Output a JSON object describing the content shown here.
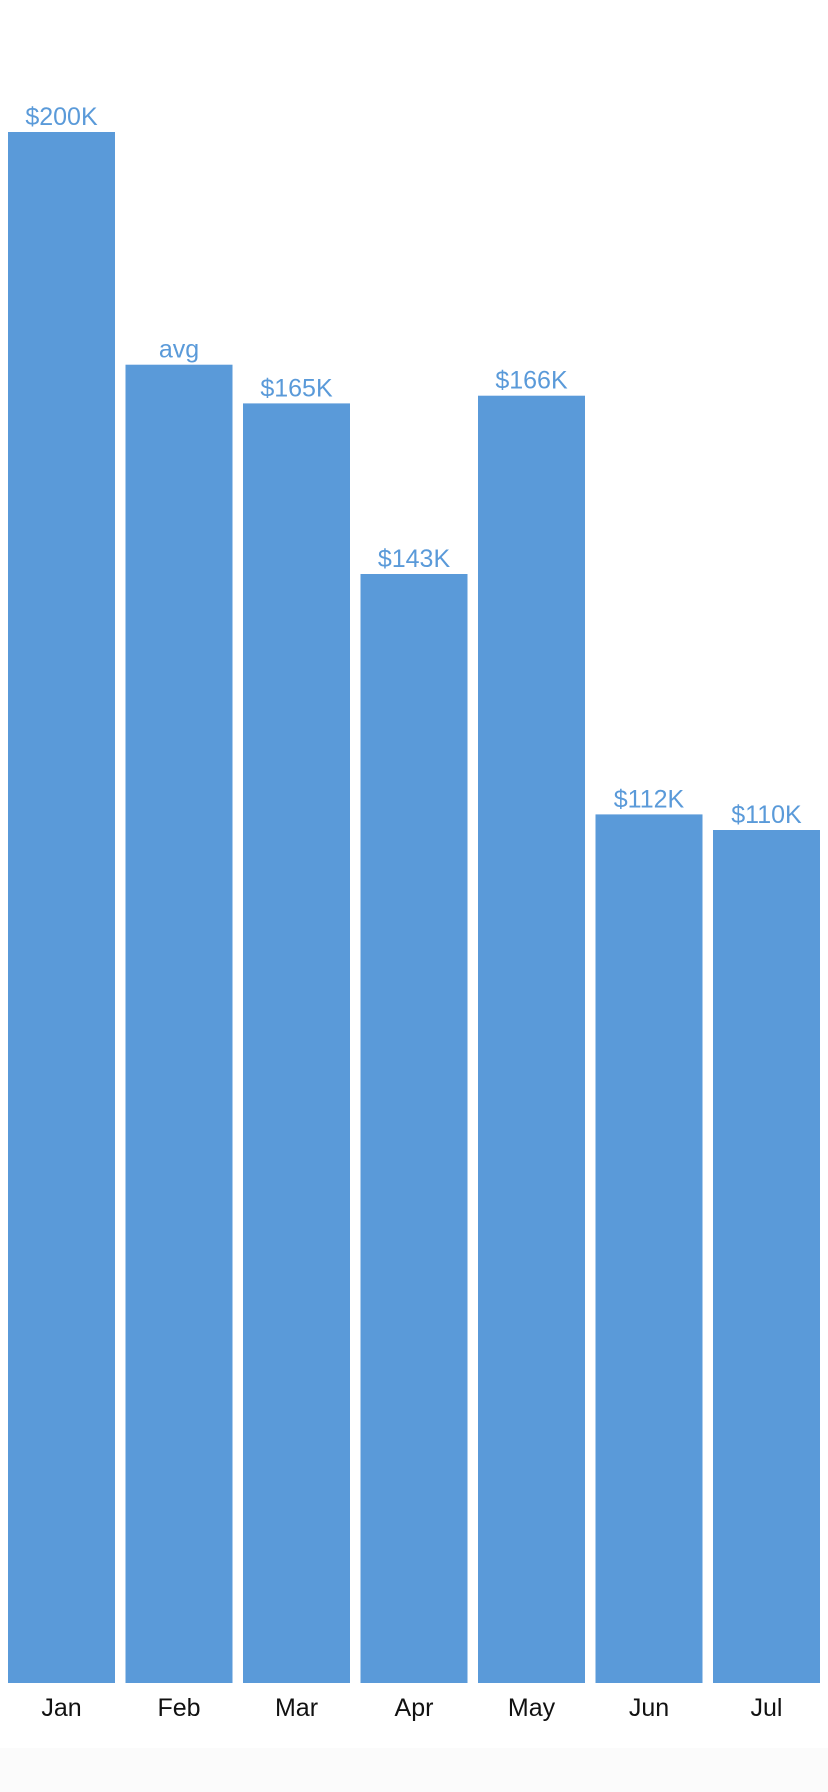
{
  "chart_data": {
    "type": "bar",
    "title": "",
    "xlabel": "",
    "ylabel": "",
    "categories": [
      "Jan",
      "Feb",
      "Mar",
      "Apr",
      "May",
      "Jun",
      "Jul"
    ],
    "values": [
      200,
      170,
      165,
      143,
      166,
      112,
      110
    ],
    "value_labels": [
      "$200K",
      "avg",
      "$165K",
      "$143K",
      "$166K",
      "$112K",
      "$110K"
    ],
    "units": "K USD",
    "ylim": [
      0,
      200
    ],
    "grid": false,
    "legend": "none",
    "colors": {
      "bar": "#5a9ad9",
      "value_label": "#5a9ad9",
      "category_label": "#111111",
      "background": "#ffffff"
    }
  }
}
